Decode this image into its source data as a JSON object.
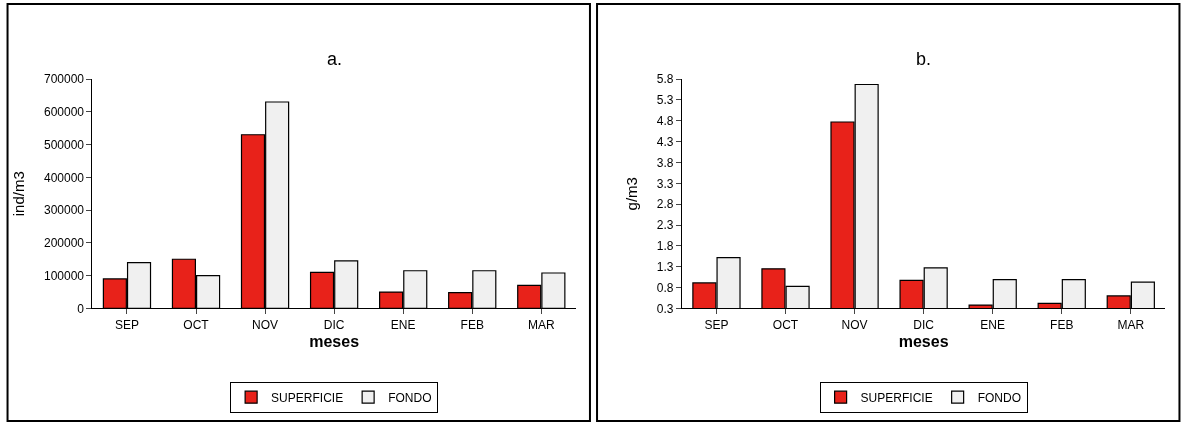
{
  "chart_data": [
    {
      "type": "bar",
      "title": "a.",
      "xlabel": "meses",
      "ylabel": "ind/m3",
      "categories": [
        "SEP",
        "OCT",
        "NOV",
        "DIC",
        "ENE",
        "FEB",
        "MAR"
      ],
      "series": [
        {
          "name": "SUPERFICIE",
          "color": "#e8221a",
          "values": [
            90000,
            150000,
            530000,
            110000,
            50000,
            48000,
            70000
          ]
        },
        {
          "name": "FONDO",
          "color": "#f0f0f0",
          "values": [
            140000,
            100000,
            630000,
            145000,
            115000,
            115000,
            108000
          ]
        }
      ],
      "ylim": [
        0,
        700000
      ],
      "yticks": [
        0,
        100000,
        200000,
        300000,
        400000,
        500000,
        600000,
        700000
      ],
      "legend": "bottom"
    },
    {
      "type": "bar",
      "title": "b.",
      "xlabel": "meses",
      "ylabel": "g/m3",
      "categories": [
        "SEP",
        "OCT",
        "NOV",
        "DIC",
        "ENE",
        "FEB",
        "MAR"
      ],
      "series": [
        {
          "name": "SUPERFICIE",
          "color": "#e8221a",
          "values": [
            0.91,
            1.25,
            4.77,
            0.97,
            0.38,
            0.42,
            0.6
          ]
        },
        {
          "name": "FONDO",
          "color": "#f0f0f0",
          "values": [
            1.52,
            0.83,
            5.67,
            1.27,
            0.99,
            0.99,
            0.93
          ]
        }
      ],
      "ylim": [
        0.3,
        5.8
      ],
      "yticks": [
        0.3,
        0.8,
        1.3,
        1.8,
        2.3,
        2.8,
        3.3,
        3.8,
        4.3,
        4.8,
        5.3,
        5.8
      ],
      "legend": "bottom"
    }
  ]
}
